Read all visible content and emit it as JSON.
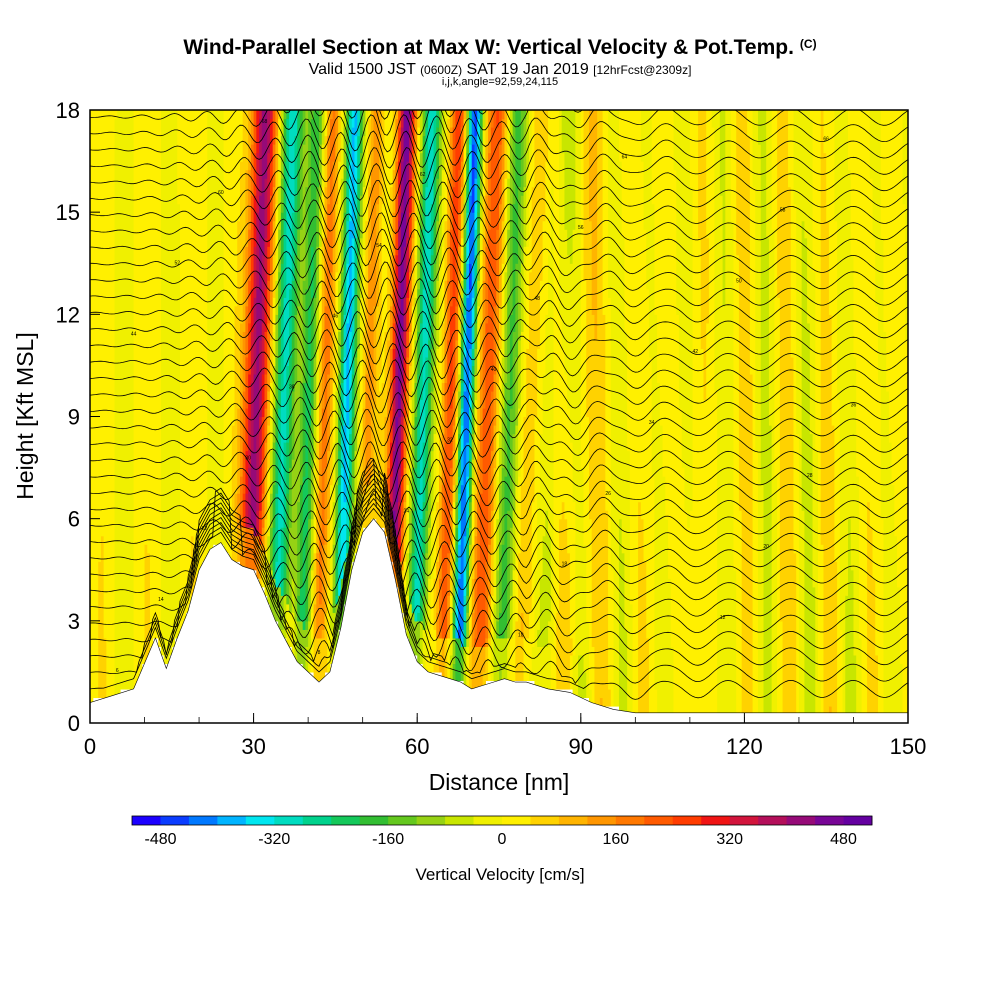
{
  "header": {
    "title": "Wind-Parallel Section at Max W: Vertical Velocity & Pot.Temp.",
    "title_mark": "(C)",
    "valid_prefix": "Valid 1500 JST",
    "valid_utc": "(0600Z)",
    "valid_date": "SAT 19 Jan 2019",
    "forecast": "[12hrFcst@2309z]",
    "indices": "i,j,k,angle=92,59,24,115"
  },
  "chart_data": {
    "type": "heatmap",
    "xlabel": "Distance [nm]",
    "ylabel": "Height [Kft MSL]",
    "xlim": [
      0,
      150
    ],
    "ylim": [
      0,
      18
    ],
    "x_ticks": [
      0,
      30,
      60,
      90,
      120,
      150
    ],
    "y_ticks": [
      0,
      3,
      6,
      9,
      12,
      15,
      18
    ],
    "colorbar": {
      "title": "Vertical Velocity [cm/s]",
      "range": [
        -520,
        520
      ],
      "labels": [
        -480,
        -320,
        -160,
        0,
        160,
        320,
        480
      ],
      "colors": [
        "#1c00ff",
        "#0a3cff",
        "#0078ff",
        "#00b4ff",
        "#00e6f0",
        "#00dcc0",
        "#00d28c",
        "#14c85a",
        "#32be32",
        "#64c81e",
        "#96d214",
        "#c8e600",
        "#f0f000",
        "#fff000",
        "#ffd200",
        "#ffb400",
        "#ff9600",
        "#ff7800",
        "#ff5a00",
        "#ff3c00",
        "#f01414",
        "#d2143c",
        "#b40f5a",
        "#960a78",
        "#780596",
        "#6400a0"
      ]
    },
    "terrain_profile": {
      "x": [
        0,
        4,
        8,
        12,
        14,
        16,
        18,
        20,
        22,
        24,
        26,
        28,
        30,
        32,
        34,
        36,
        38,
        40,
        42,
        44,
        46,
        48,
        50,
        52,
        54,
        56,
        58,
        60,
        62,
        64,
        66,
        68,
        70,
        72,
        74,
        76,
        78,
        80,
        84,
        88,
        92,
        96,
        100,
        110,
        120,
        130,
        140,
        150
      ],
      "height": [
        0.6,
        0.8,
        1.0,
        2.5,
        1.6,
        2.5,
        3.3,
        4.5,
        5.1,
        5.3,
        4.8,
        4.6,
        4.5,
        3.8,
        3.0,
        2.4,
        1.8,
        1.5,
        1.2,
        1.5,
        2.8,
        4.5,
        5.6,
        6.0,
        5.6,
        4.2,
        2.6,
        1.8,
        1.5,
        1.4,
        1.3,
        1.2,
        1.0,
        1.1,
        1.2,
        1.3,
        1.2,
        1.2,
        1.0,
        0.9,
        0.6,
        0.4,
        0.3,
        0.3,
        0.3,
        0.3,
        0.3,
        0.3
      ]
    },
    "theta_contour_labels": [
      "6",
      "8",
      "10",
      "12",
      "14",
      "16",
      "18",
      "20",
      "22",
      "24",
      "26",
      "28",
      "30",
      "32",
      "34",
      "36",
      "38",
      "40",
      "42",
      "44",
      "46",
      "48",
      "50",
      "52",
      "54",
      "56",
      "58",
      "60",
      "62",
      "64",
      "66",
      "68"
    ]
  }
}
